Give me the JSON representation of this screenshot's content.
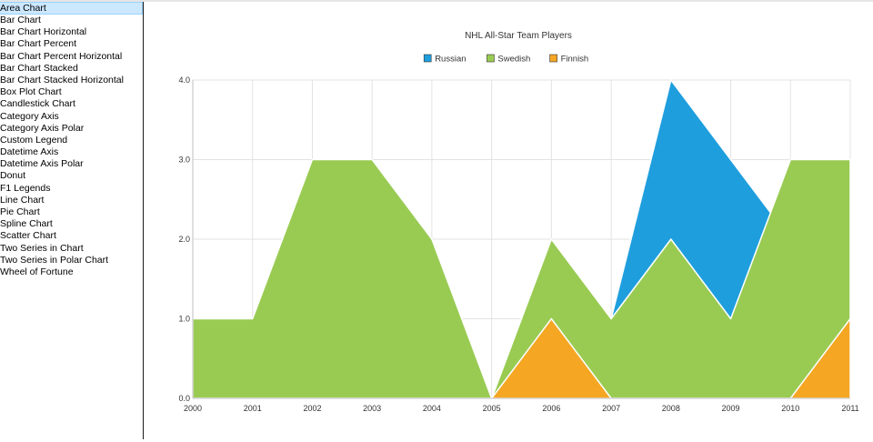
{
  "sidebar": {
    "selected_index": 0,
    "items": [
      "Area Chart",
      "Bar Chart",
      "Bar Chart Horizontal",
      "Bar Chart Percent",
      "Bar Chart Percent Horizontal",
      "Bar Chart Stacked",
      "Bar Chart Stacked Horizontal",
      "Box Plot Chart",
      "Candlestick Chart",
      "Category Axis",
      "Category Axis Polar",
      "Custom Legend",
      "Datetime Axis",
      "Datetime Axis Polar",
      "Donut",
      "F1 Legends",
      "Line Chart",
      "Pie Chart",
      "Spline Chart",
      "Scatter Chart",
      "Two Series in Chart",
      "Two Series in Polar Chart",
      "Wheel of Fortune"
    ]
  },
  "chart_data": {
    "type": "area",
    "title": "NHL All-Star Team Players",
    "x": [
      2000,
      2001,
      2002,
      2003,
      2004,
      2005,
      2006,
      2007,
      2008,
      2009,
      2010,
      2011
    ],
    "ylim": [
      0,
      4
    ],
    "yticks": [
      "0.0",
      "1.0",
      "2.0",
      "3.0",
      "4.0"
    ],
    "grid": true,
    "legend_position": "top-center",
    "series": [
      {
        "name": "Russian",
        "color": "#1f9ede",
        "values": [
          0,
          0,
          0,
          0,
          0,
          0,
          0,
          1,
          4,
          3,
          2,
          0
        ]
      },
      {
        "name": "Swedish",
        "color": "#99cb53",
        "values": [
          1,
          1,
          3,
          3,
          2,
          0,
          2,
          1,
          2,
          1,
          3,
          3
        ]
      },
      {
        "name": "Finnish",
        "color": "#f5a623",
        "values": [
          0,
          0,
          0,
          0,
          0,
          0,
          1,
          0,
          0,
          0,
          0,
          1
        ]
      }
    ]
  }
}
